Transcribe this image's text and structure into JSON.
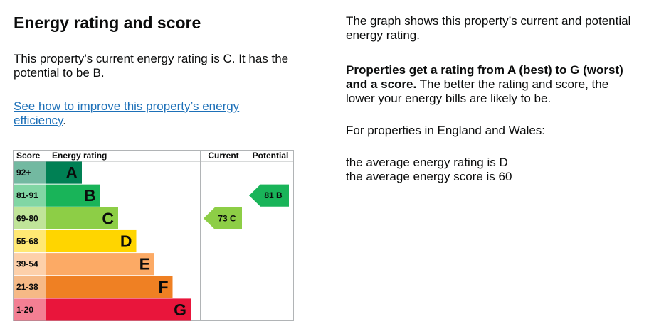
{
  "heading": "Energy rating and score",
  "current_sentence": "This property’s current energy rating is C. It has the potential to be B.",
  "improve_link": "See how to improve this property’s energy efficiency",
  "improve_link_suffix": ".",
  "right": {
    "graph_text": "The graph shows this property’s current and potential energy rating.",
    "bold_text": "Properties get a rating from A (best) to G (worst) and a score.",
    "rest_text": " The better the rating and score, the lower your energy bills are likely to be.",
    "region_text": "For properties in England and Wales:",
    "avg_rating_text": "the average energy rating is D",
    "avg_score_text": "the average energy score is 60"
  },
  "chart_data": {
    "type": "table",
    "headers": {
      "score": "Score",
      "rating": "Energy rating",
      "current": "Current",
      "potential": "Potential"
    },
    "bands": [
      {
        "range": "92+",
        "letter": "A",
        "color": "#008054"
      },
      {
        "range": "81-91",
        "letter": "B",
        "color": "#19b459"
      },
      {
        "range": "69-80",
        "letter": "C",
        "color": "#8dce46"
      },
      {
        "range": "55-68",
        "letter": "D",
        "color": "#ffd500"
      },
      {
        "range": "39-54",
        "letter": "E",
        "color": "#fcaa65"
      },
      {
        "range": "21-38",
        "letter": "F",
        "color": "#ef8023"
      },
      {
        "range": "1-20",
        "letter": "G",
        "color": "#e9153b"
      }
    ],
    "current": {
      "score": 73,
      "letter": "C",
      "label": "73 C",
      "color": "#8dce46"
    },
    "potential": {
      "score": 81,
      "letter": "B",
      "label": "81 B",
      "color": "#19b459"
    }
  }
}
